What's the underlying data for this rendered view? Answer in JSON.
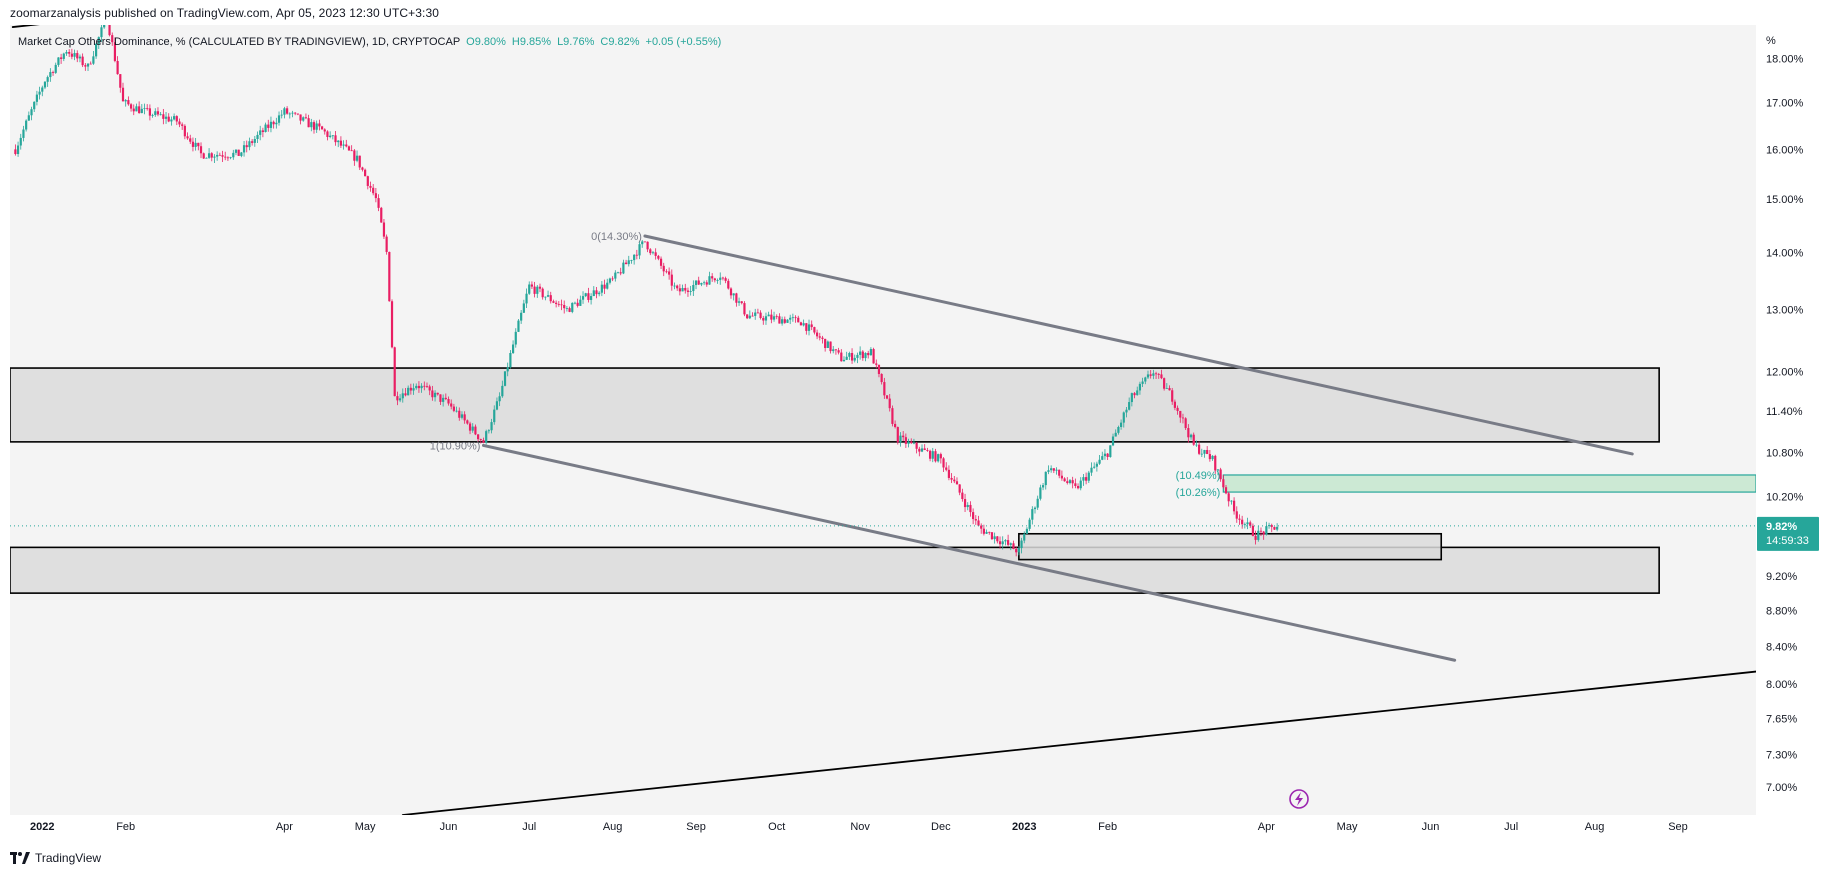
{
  "attribution": "zoomarzanalysis published on TradingView.com, Apr 05, 2023 12:30 UTC+3:30",
  "footer": {
    "brand": "TradingView",
    "logo_icon": "tradingview-logo-icon"
  },
  "colors": {
    "up": "#26a69a",
    "down": "#e91e63",
    "trendline": "#787b86",
    "box_stroke": "#000000",
    "box_fill": "#dadada",
    "target_fill": "#bfe5c9",
    "target_stroke": "#26a69a",
    "last_price_bg": "#26a69a",
    "background": "#f4f4f4",
    "replay_icon": "#9c27b0"
  },
  "chart_data": {
    "type": "candlestick",
    "title": "Market Cap Others Dominance, % (CALCULATED BY TRADINGVIEW), 1D, CRYPTOCAP",
    "ohlc_header": {
      "o": "O9.80%",
      "h": "H9.85%",
      "l": "L9.76%",
      "c": "C9.82%",
      "chg": "+0.05 (+0.55%)"
    },
    "y_unit": "%",
    "y_scale": "log",
    "y_ticks": [
      "18.00%",
      "17.00%",
      "16.00%",
      "15.00%",
      "14.00%",
      "13.00%",
      "12.00%",
      "11.40%",
      "10.80%",
      "10.20%",
      "9.20%",
      "8.80%",
      "8.40%",
      "8.00%",
      "7.65%",
      "7.30%",
      "7.00%"
    ],
    "x_ticks": [
      "2022",
      "Feb",
      "Apr",
      "May",
      "Jun",
      "Jul",
      "Aug",
      "Sep",
      "Oct",
      "Nov",
      "Dec",
      "2023",
      "Feb",
      "Apr",
      "May",
      "Jun",
      "Jul",
      "Aug",
      "Sep"
    ],
    "x_range": [
      "2021-12-20",
      "2023-09-30"
    ],
    "y_range": [
      6.75,
      18.8
    ],
    "price_path": [
      [
        "2021-12-22",
        16.0
      ],
      [
        "2022-01-02",
        17.5
      ],
      [
        "2022-01-10",
        18.2
      ],
      [
        "2022-01-18",
        17.8
      ],
      [
        "2022-01-25",
        19.0
      ],
      [
        "2022-01-31",
        17.0
      ],
      [
        "2022-02-08",
        16.8
      ],
      [
        "2022-02-20",
        16.6
      ],
      [
        "2022-03-01",
        15.9
      ],
      [
        "2022-03-15",
        15.9
      ],
      [
        "2022-04-01",
        16.8
      ],
      [
        "2022-04-15",
        16.4
      ],
      [
        "2022-04-28",
        15.8
      ],
      [
        "2022-05-05",
        15.0
      ],
      [
        "2022-05-09",
        14.0
      ],
      [
        "2022-05-12",
        11.6
      ],
      [
        "2022-05-20",
        11.8
      ],
      [
        "2022-06-01",
        11.5
      ],
      [
        "2022-06-14",
        10.95
      ],
      [
        "2022-06-20",
        11.6
      ],
      [
        "2022-07-01",
        13.4
      ],
      [
        "2022-07-15",
        13.0
      ],
      [
        "2022-08-01",
        13.5
      ],
      [
        "2022-08-13",
        14.2
      ],
      [
        "2022-08-25",
        13.3
      ],
      [
        "2022-09-10",
        13.6
      ],
      [
        "2022-09-20",
        12.9
      ],
      [
        "2022-10-10",
        12.8
      ],
      [
        "2022-10-25",
        12.2
      ],
      [
        "2022-11-05",
        12.3
      ],
      [
        "2022-11-15",
        11.0
      ],
      [
        "2022-12-01",
        10.7
      ],
      [
        "2022-12-15",
        9.8
      ],
      [
        "2022-12-30",
        9.5
      ],
      [
        "2023-01-10",
        10.6
      ],
      [
        "2023-01-20",
        10.3
      ],
      [
        "2023-02-01",
        10.8
      ],
      [
        "2023-02-10",
        11.6
      ],
      [
        "2023-02-18",
        12.0
      ],
      [
        "2023-02-25",
        11.6
      ],
      [
        "2023-03-05",
        10.9
      ],
      [
        "2023-03-12",
        10.7
      ],
      [
        "2023-03-20",
        10.0
      ],
      [
        "2023-03-28",
        9.7
      ],
      [
        "2023-04-05",
        9.82
      ]
    ],
    "last_price": {
      "label": "9.82%",
      "countdown": "14:59:33",
      "value": 9.82
    },
    "zones": [
      {
        "name": "resistance-zone",
        "y_low": 10.95,
        "y_high": 12.05,
        "x_start": "2021-12-20",
        "x_end": "2023-08-25"
      },
      {
        "name": "support-zone",
        "y_low": 9.0,
        "y_high": 9.55,
        "x_start": "2021-12-20",
        "x_end": "2023-08-25"
      },
      {
        "name": "demand-zone",
        "y_low": 9.4,
        "y_high": 9.72,
        "x_start": "2022-12-30",
        "x_end": "2023-06-05"
      },
      {
        "name": "target-zone",
        "y_low": 10.26,
        "y_high": 10.49,
        "x_start": "2023-03-16",
        "x_end": "2023-09-30"
      }
    ],
    "trendlines": [
      {
        "name": "channel-upper-line",
        "from": [
          "2022-08-13",
          14.3
        ],
        "to": [
          "2023-08-15",
          10.78
        ],
        "color": "trendline"
      },
      {
        "name": "channel-lower-line",
        "from": [
          "2022-06-14",
          10.9
        ],
        "to": [
          "2023-06-10",
          8.25
        ],
        "color": "trendline"
      },
      {
        "name": "long-support-line",
        "from": [
          "2022-05-15",
          6.75
        ],
        "to": [
          "2023-09-30",
          8.13
        ],
        "color": "box_stroke"
      },
      {
        "name": "top-left-line",
        "from": [
          "2021-12-21",
          18.75
        ],
        "to": [
          "2022-01-25",
          19.0
        ],
        "color": "box_stroke"
      }
    ],
    "annotations": [
      {
        "name": "fib-zero-label",
        "text": "0(14.30%)",
        "at": [
          "2022-08-13",
          14.3
        ],
        "anchor": "end",
        "color": "#787b86"
      },
      {
        "name": "fib-one-label",
        "text": "1(10.90%)",
        "at": [
          "2022-06-14",
          10.9
        ],
        "anchor": "end",
        "color": "#787b86"
      },
      {
        "name": "level-1049-label",
        "text": "(10.49%)",
        "at": [
          "2023-03-16",
          10.49
        ],
        "anchor": "end",
        "color": "#26a69a"
      },
      {
        "name": "level-1026-label",
        "text": "(10.26%)",
        "at": [
          "2023-03-16",
          10.26
        ],
        "anchor": "end",
        "color": "#26a69a"
      }
    ]
  }
}
